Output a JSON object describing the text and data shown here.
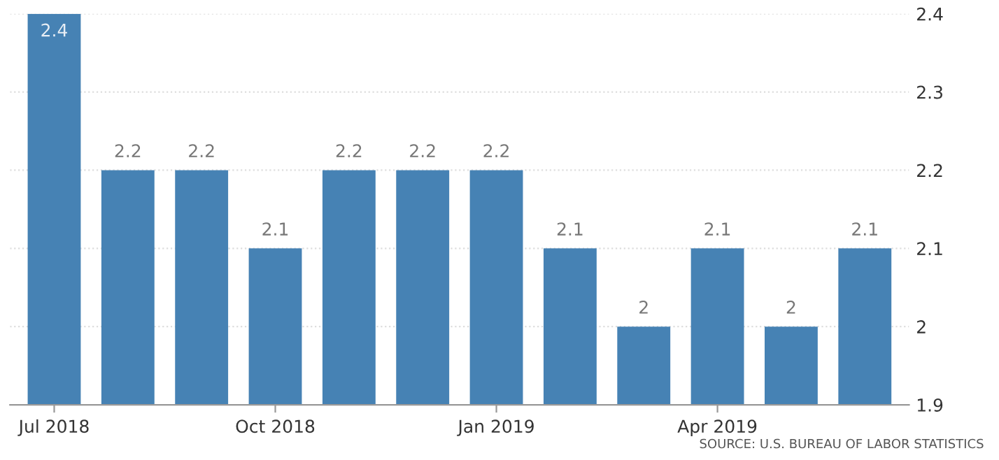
{
  "chart_data": {
    "type": "bar",
    "categories": [
      "Jul 2018",
      null,
      null,
      "Oct 2018",
      null,
      null,
      "Jan 2019",
      null,
      null,
      "Apr 2019",
      null,
      null
    ],
    "values": [
      2.4,
      2.2,
      2.2,
      2.1,
      2.2,
      2.2,
      2.2,
      2.1,
      2,
      2.1,
      2,
      2.1
    ],
    "color": "#4682b4",
    "data_labels": true,
    "ylim": [
      1.9,
      2.4
    ],
    "yticks": [
      1.9,
      2,
      2.1,
      2.2,
      2.3,
      2.4
    ],
    "grid": "y",
    "annotations": [
      "SOURCE: U.S. BUREAU OF LABOR STATISTICS"
    ]
  }
}
